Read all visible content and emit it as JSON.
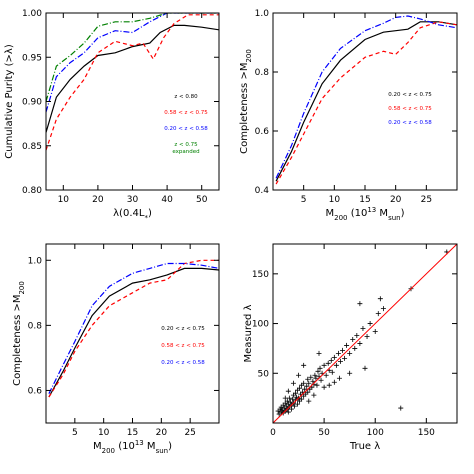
{
  "chart_data": [
    {
      "id": "p1",
      "type": "line",
      "xlabel": "λ(0.4L",
      "xlabel_sub": "*",
      "xlabel_tail": ")",
      "ylabel": "Cumulative Purity (>λ)",
      "xlim": [
        5,
        55
      ],
      "ylim": [
        0.8,
        1.0
      ],
      "xticks": [
        10,
        20,
        30,
        40,
        50
      ],
      "xtick_labels": [
        "10",
        "20",
        "30",
        "40",
        "50"
      ],
      "yticks": [
        0.8,
        0.85,
        0.9,
        0.95,
        1.0
      ],
      "ytick_labels": [
        "0.80",
        "0.85",
        "0.90",
        "0.95",
        "1.00"
      ],
      "legend": [
        {
          "text": "z < 0.80",
          "color": "#000000"
        },
        {
          "text": "0.58 < z < 0.75",
          "color": "#ff0000"
        },
        {
          "text": "0.20 < z < 0.58",
          "color": "#0000ff"
        },
        {
          "text": "z < 0.75",
          "sub": "expanded",
          "color": "#008000"
        }
      ],
      "series": [
        {
          "color": "#000000",
          "dash": "",
          "points": [
            [
              5,
              0.865
            ],
            [
              8,
              0.905
            ],
            [
              12,
              0.925
            ],
            [
              16,
              0.94
            ],
            [
              20,
              0.952
            ],
            [
              25,
              0.955
            ],
            [
              30,
              0.962
            ],
            [
              35,
              0.966
            ],
            [
              38,
              0.978
            ],
            [
              42,
              0.986
            ],
            [
              45,
              0.986
            ],
            [
              50,
              0.984
            ],
            [
              55,
              0.981
            ]
          ]
        },
        {
          "color": "#ff0000",
          "dash": "4,3",
          "points": [
            [
              5,
              0.845
            ],
            [
              8,
              0.88
            ],
            [
              12,
              0.905
            ],
            [
              16,
              0.925
            ],
            [
              20,
              0.955
            ],
            [
              25,
              0.968
            ],
            [
              30,
              0.963
            ],
            [
              33,
              0.966
            ],
            [
              36,
              0.948
            ],
            [
              39,
              0.972
            ],
            [
              42,
              0.988
            ],
            [
              46,
              0.998
            ],
            [
              55,
              0.998
            ]
          ]
        },
        {
          "color": "#0000ff",
          "dash": "6,2,1,2",
          "points": [
            [
              5,
              0.888
            ],
            [
              8,
              0.928
            ],
            [
              12,
              0.944
            ],
            [
              16,
              0.955
            ],
            [
              20,
              0.972
            ],
            [
              25,
              0.98
            ],
            [
              30,
              0.978
            ],
            [
              35,
              0.99
            ],
            [
              40,
              1.0
            ],
            [
              55,
              1.0
            ]
          ]
        },
        {
          "color": "#008000",
          "dash": "6,2,1,2",
          "points": [
            [
              5,
              0.9
            ],
            [
              8,
              0.94
            ],
            [
              12,
              0.952
            ],
            [
              16,
              0.966
            ],
            [
              20,
              0.985
            ],
            [
              25,
              0.99
            ],
            [
              30,
              0.99
            ],
            [
              35,
              0.994
            ],
            [
              40,
              1.0
            ],
            [
              55,
              1.0
            ]
          ]
        }
      ]
    },
    {
      "id": "p2",
      "type": "line",
      "xlabel": "M",
      "xlabel_sub": "200",
      "xlabel_tail": " (10",
      "xlabel_sup": "13",
      "xlabel_tail2": " M",
      "xlabel_sub2": "sun",
      "xlabel_end": ")",
      "ylabel": "Completeness >M",
      "ylabel_sub": "200",
      "xlim": [
        0,
        30
      ],
      "ylim": [
        0.4,
        1.0
      ],
      "xticks": [
        5,
        10,
        15,
        20,
        25
      ],
      "xtick_labels": [
        "5",
        "10",
        "15",
        "20",
        "25"
      ],
      "yticks": [
        0.4,
        0.6,
        0.8,
        1.0
      ],
      "ytick_labels": [
        "0.4",
        "0.6",
        "0.8",
        "1.0"
      ],
      "legend": [
        {
          "text": "0.20 < z < 0.75",
          "color": "#000000"
        },
        {
          "text": "0.58 < z < 0.75",
          "color": "#ff0000"
        },
        {
          "text": "0.20 < z < 0.58",
          "color": "#0000ff"
        }
      ],
      "series": [
        {
          "color": "#000000",
          "dash": "",
          "points": [
            [
              0.5,
              0.43
            ],
            [
              3,
              0.53
            ],
            [
              5,
              0.63
            ],
            [
              8,
              0.76
            ],
            [
              11,
              0.84
            ],
            [
              15,
              0.91
            ],
            [
              18,
              0.935
            ],
            [
              20,
              0.94
            ],
            [
              22,
              0.945
            ],
            [
              24,
              0.97
            ],
            [
              27,
              0.97
            ],
            [
              30,
              0.96
            ]
          ]
        },
        {
          "color": "#ff0000",
          "dash": "4,3",
          "points": [
            [
              0.5,
              0.42
            ],
            [
              3,
              0.51
            ],
            [
              5,
              0.59
            ],
            [
              8,
              0.71
            ],
            [
              11,
              0.78
            ],
            [
              15,
              0.85
            ],
            [
              18,
              0.87
            ],
            [
              20,
              0.86
            ],
            [
              22,
              0.9
            ],
            [
              24,
              0.95
            ],
            [
              27,
              0.97
            ],
            [
              30,
              0.96
            ]
          ]
        },
        {
          "color": "#0000ff",
          "dash": "6,2,1,2",
          "points": [
            [
              0.5,
              0.44
            ],
            [
              3,
              0.55
            ],
            [
              5,
              0.66
            ],
            [
              8,
              0.8
            ],
            [
              11,
              0.88
            ],
            [
              15,
              0.94
            ],
            [
              18,
              0.965
            ],
            [
              20,
              0.985
            ],
            [
              22,
              0.99
            ],
            [
              24,
              0.98
            ],
            [
              27,
              0.96
            ],
            [
              30,
              0.95
            ]
          ]
        }
      ]
    },
    {
      "id": "p3",
      "type": "line",
      "xlabel": "M",
      "xlabel_sub": "200",
      "xlabel_tail": " (10",
      "xlabel_sup": "13",
      "xlabel_tail2": " M",
      "xlabel_sub2": "sun",
      "xlabel_end": ")",
      "ylabel": "Completeness >M",
      "ylabel_sub": "200",
      "xlim": [
        0,
        30
      ],
      "ylim": [
        0.5,
        1.05
      ],
      "xticks": [
        5,
        10,
        15,
        20,
        25
      ],
      "xtick_labels": [
        "5",
        "10",
        "15",
        "20",
        "25"
      ],
      "yticks": [
        0.6,
        0.8,
        1.0
      ],
      "ytick_labels": [
        "0.6",
        "0.8",
        "1.0"
      ],
      "legend": [
        {
          "text": "0.20 < z < 0.75",
          "color": "#000000"
        },
        {
          "text": "0.58 < z < 0.75",
          "color": "#ff0000"
        },
        {
          "text": "0.20 < z < 0.58",
          "color": "#0000ff"
        }
      ],
      "series": [
        {
          "color": "#000000",
          "dash": "",
          "points": [
            [
              0.5,
              0.58
            ],
            [
              3,
              0.66
            ],
            [
              5,
              0.73
            ],
            [
              8,
              0.83
            ],
            [
              11,
              0.89
            ],
            [
              15,
              0.93
            ],
            [
              18,
              0.94
            ],
            [
              21,
              0.955
            ],
            [
              24,
              0.975
            ],
            [
              27,
              0.975
            ],
            [
              30,
              0.97
            ]
          ]
        },
        {
          "color": "#ff0000",
          "dash": "4,3",
          "points": [
            [
              0.5,
              0.58
            ],
            [
              3,
              0.65
            ],
            [
              5,
              0.72
            ],
            [
              8,
              0.8
            ],
            [
              11,
              0.86
            ],
            [
              15,
              0.9
            ],
            [
              18,
              0.93
            ],
            [
              21,
              0.94
            ],
            [
              24,
              0.99
            ],
            [
              27,
              1.0
            ],
            [
              30,
              1.0
            ]
          ]
        },
        {
          "color": "#0000ff",
          "dash": "6,2,1,2",
          "points": [
            [
              0.5,
              0.59
            ],
            [
              3,
              0.68
            ],
            [
              5,
              0.75
            ],
            [
              8,
              0.86
            ],
            [
              11,
              0.92
            ],
            [
              15,
              0.96
            ],
            [
              18,
              0.975
            ],
            [
              21,
              0.99
            ],
            [
              24,
              0.99
            ],
            [
              27,
              0.985
            ],
            [
              30,
              0.975
            ]
          ]
        }
      ]
    },
    {
      "id": "p4",
      "type": "scatter",
      "xlabel": "True λ",
      "ylabel": "Measured λ",
      "xlim": [
        0,
        180
      ],
      "ylim": [
        0,
        180
      ],
      "xticks": [
        0,
        50,
        100,
        150
      ],
      "xtick_labels": [
        "0",
        "50",
        "100",
        "150"
      ],
      "yticks": [
        50,
        100,
        150
      ],
      "ytick_labels": [
        "50",
        "100",
        "150"
      ],
      "reference_line": {
        "color": "#ff0000",
        "from": [
          0,
          0
        ],
        "to": [
          180,
          180
        ]
      },
      "points": [
        [
          5,
          12
        ],
        [
          6,
          9
        ],
        [
          7,
          14
        ],
        [
          8,
          11
        ],
        [
          8,
          16
        ],
        [
          9,
          13
        ],
        [
          10,
          10
        ],
        [
          10,
          18
        ],
        [
          11,
          15
        ],
        [
          12,
          12
        ],
        [
          12,
          20
        ],
        [
          13,
          17
        ],
        [
          14,
          14
        ],
        [
          14,
          22
        ],
        [
          15,
          11
        ],
        [
          15,
          19
        ],
        [
          16,
          16
        ],
        [
          16,
          25
        ],
        [
          17,
          21
        ],
        [
          18,
          14
        ],
        [
          18,
          18
        ],
        [
          19,
          24
        ],
        [
          20,
          20
        ],
        [
          20,
          28
        ],
        [
          21,
          17
        ],
        [
          22,
          23
        ],
        [
          22,
          30
        ],
        [
          23,
          26
        ],
        [
          24,
          19
        ],
        [
          24,
          33
        ],
        [
          25,
          25
        ],
        [
          26,
          22
        ],
        [
          26,
          35
        ],
        [
          27,
          29
        ],
        [
          28,
          24
        ],
        [
          28,
          38
        ],
        [
          29,
          31
        ],
        [
          30,
          27
        ],
        [
          30,
          40
        ],
        [
          31,
          34
        ],
        [
          32,
          29
        ],
        [
          33,
          37
        ],
        [
          34,
          31
        ],
        [
          34,
          44
        ],
        [
          35,
          40
        ],
        [
          36,
          34
        ],
        [
          37,
          46
        ],
        [
          38,
          36
        ],
        [
          39,
          42
        ],
        [
          40,
          39
        ],
        [
          41,
          48
        ],
        [
          42,
          45
        ],
        [
          43,
          38
        ],
        [
          44,
          52
        ],
        [
          45,
          47
        ],
        [
          46,
          55
        ],
        [
          47,
          43
        ],
        [
          48,
          50
        ],
        [
          50,
          58
        ],
        [
          52,
          48
        ],
        [
          54,
          60
        ],
        [
          55,
          53
        ],
        [
          57,
          63
        ],
        [
          58,
          51
        ],
        [
          60,
          66
        ],
        [
          62,
          58
        ],
        [
          64,
          70
        ],
        [
          66,
          62
        ],
        [
          68,
          73
        ],
        [
          70,
          65
        ],
        [
          72,
          78
        ],
        [
          75,
          70
        ],
        [
          78,
          84
        ],
        [
          80,
          75
        ],
        [
          82,
          88
        ],
        [
          85,
          80
        ],
        [
          88,
          95
        ],
        [
          92,
          87
        ],
        [
          95,
          100
        ],
        [
          100,
          92
        ],
        [
          103,
          110
        ],
        [
          108,
          115
        ],
        [
          60,
          41
        ],
        [
          75,
          50
        ],
        [
          85,
          120
        ],
        [
          90,
          55
        ],
        [
          105,
          125
        ],
        [
          135,
          135
        ],
        [
          125,
          15
        ],
        [
          170,
          172
        ],
        [
          45,
          70
        ],
        [
          30,
          58
        ],
        [
          25,
          48
        ],
        [
          20,
          40
        ],
        [
          15,
          32
        ],
        [
          12,
          25
        ],
        [
          50,
          36
        ],
        [
          40,
          28
        ],
        [
          35,
          22
        ],
        [
          65,
          45
        ],
        [
          55,
          38
        ]
      ]
    }
  ]
}
